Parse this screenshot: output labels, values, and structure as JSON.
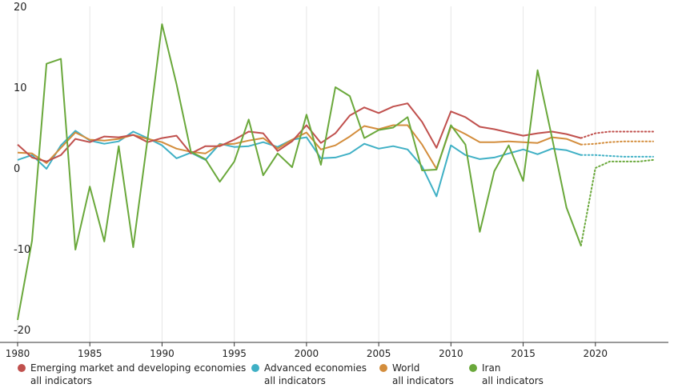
{
  "chart_data": {
    "type": "line",
    "x": [
      1980,
      1981,
      1982,
      1983,
      1984,
      1985,
      1986,
      1987,
      1988,
      1989,
      1990,
      1991,
      1992,
      1993,
      1994,
      1995,
      1996,
      1997,
      1998,
      1999,
      2000,
      2001,
      2002,
      2003,
      2004,
      2005,
      2006,
      2007,
      2008,
      2009,
      2010,
      2011,
      2012,
      2013,
      2014,
      2015,
      2016,
      2017,
      2018,
      2019,
      2020,
      2021,
      2022,
      2023,
      2024
    ],
    "actual_until": 2019,
    "ylim": [
      -20,
      20
    ],
    "yticks": [
      -20,
      -10,
      0,
      10,
      20
    ],
    "xlim": [
      1980,
      2024.5
    ],
    "xticks": [
      1980,
      1985,
      1990,
      1995,
      2000,
      2005,
      2010,
      2015,
      2020
    ],
    "grid": "vertical",
    "legend_position": "bottom",
    "series": [
      {
        "name": "Emerging market and developing economies",
        "sub": "all indicators",
        "color": "#c0504d",
        "values": [
          2.9,
          1.3,
          0.8,
          1.6,
          3.6,
          3.2,
          3.9,
          3.8,
          4.1,
          3.2,
          3.7,
          4.0,
          1.8,
          2.7,
          2.7,
          3.5,
          4.5,
          4.3,
          2.1,
          3.3,
          5.3,
          3.1,
          4.3,
          6.5,
          7.5,
          6.8,
          7.6,
          8.0,
          5.7,
          2.5,
          7.0,
          6.3,
          5.1,
          4.8,
          4.4,
          4.0,
          4.3,
          4.5,
          4.2,
          3.7,
          4.3,
          4.5,
          4.5,
          4.5,
          4.5
        ]
      },
      {
        "name": "Advanced economies",
        "sub": "all indicators",
        "color": "#3fb0c5",
        "values": [
          1.0,
          1.6,
          -0.1,
          2.8,
          4.6,
          3.4,
          3.0,
          3.3,
          4.5,
          3.7,
          2.8,
          1.2,
          1.9,
          1.0,
          3.0,
          2.6,
          2.7,
          3.2,
          2.6,
          3.5,
          3.8,
          1.2,
          1.3,
          1.8,
          3.0,
          2.4,
          2.7,
          2.3,
          0.2,
          -3.5,
          2.8,
          1.6,
          1.1,
          1.3,
          1.8,
          2.3,
          1.7,
          2.4,
          2.2,
          1.6,
          1.6,
          1.5,
          1.4,
          1.4,
          1.4
        ]
      },
      {
        "name": "World",
        "sub": "all indicators",
        "color": "#d38d3c",
        "values": [
          1.9,
          1.8,
          0.6,
          2.5,
          4.4,
          3.5,
          3.4,
          3.6,
          4.1,
          3.6,
          3.2,
          2.4,
          2.0,
          1.8,
          2.9,
          3.0,
          3.4,
          3.7,
          2.4,
          3.5,
          4.4,
          2.3,
          2.8,
          3.9,
          5.2,
          4.8,
          5.3,
          5.3,
          2.9,
          -0.1,
          5.1,
          4.2,
          3.2,
          3.2,
          3.3,
          3.2,
          3.1,
          3.8,
          3.6,
          2.9,
          3.0,
          3.2,
          3.3,
          3.3,
          3.3
        ]
      },
      {
        "name": "Iran",
        "sub": "all indicators",
        "color": "#6aa83b",
        "values": [
          -18.8,
          -9.0,
          12.9,
          13.5,
          -10.1,
          -2.3,
          -9.1,
          2.7,
          -9.8,
          3.6,
          17.8,
          10.4,
          2.0,
          1.1,
          -1.7,
          0.8,
          6.0,
          -0.9,
          1.8,
          0.1,
          6.6,
          0.4,
          10.0,
          8.9,
          3.7,
          4.7,
          5.0,
          6.3,
          -0.3,
          -0.2,
          5.3,
          2.9,
          -7.9,
          -0.4,
          2.8,
          -1.6,
          12.1,
          3.7,
          -4.9,
          -9.6,
          0.0,
          0.8,
          0.8,
          0.8,
          1.0
        ]
      }
    ]
  }
}
